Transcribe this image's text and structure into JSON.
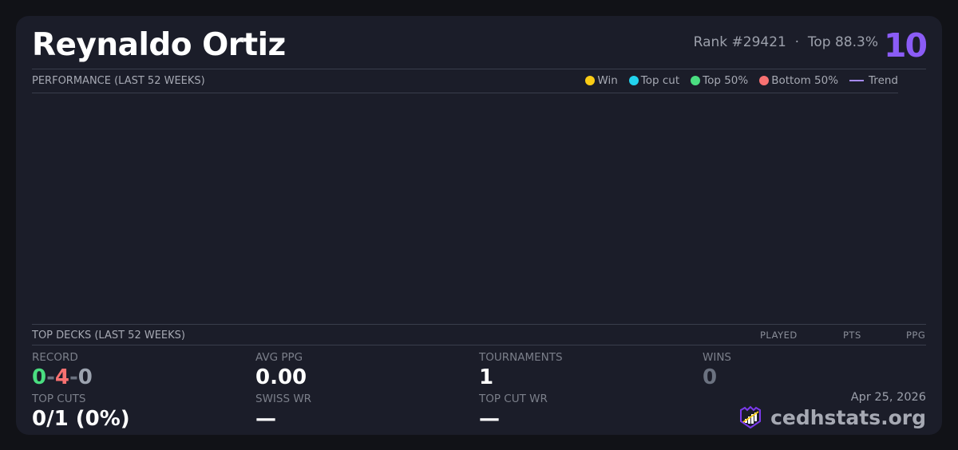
{
  "player": {
    "name": "Reynaldo Ortiz",
    "rank": "Rank #29421",
    "separator": "·",
    "top_pct": "Top 88.3%",
    "level": "10"
  },
  "performance": {
    "title": "PERFORMANCE (LAST 52 WEEKS)",
    "legend": [
      {
        "label": "Win",
        "color": "#facc15"
      },
      {
        "label": "Top cut",
        "color": "#22d3ee"
      },
      {
        "label": "Top 50%",
        "color": "#4ade80"
      },
      {
        "label": "Bottom 50%",
        "color": "#f87171"
      },
      {
        "label": "Trend",
        "color": "#a78bfa"
      }
    ]
  },
  "top_decks": {
    "title": "TOP DECKS (LAST 52 WEEKS)",
    "columns": [
      "PLAYED",
      "PTS",
      "PPG"
    ]
  },
  "stats": {
    "record_label": "RECORD",
    "record_wins": "0",
    "record_losses": "4",
    "record_draws": "0",
    "dash": "-",
    "avg_ppg_label": "AVG PPG",
    "avg_ppg": "0.00",
    "tournaments_label": "TOURNAMENTS",
    "tournaments": "1",
    "wins_label": "WINS",
    "wins": "0",
    "top_cuts_label": "TOP CUTS",
    "top_cuts": "0/1 (0%)",
    "swiss_wr_label": "SWISS WR",
    "swiss_wr": "—",
    "top_cut_wr_label": "TOP CUT WR",
    "top_cut_wr": "—"
  },
  "footer": {
    "date": "Apr 25, 2026",
    "brand": "cedhstats.org"
  },
  "colors": {
    "win": "#4ade80",
    "loss": "#f87171",
    "draw": "#9ca3af",
    "accent": "#8b5cf6"
  }
}
